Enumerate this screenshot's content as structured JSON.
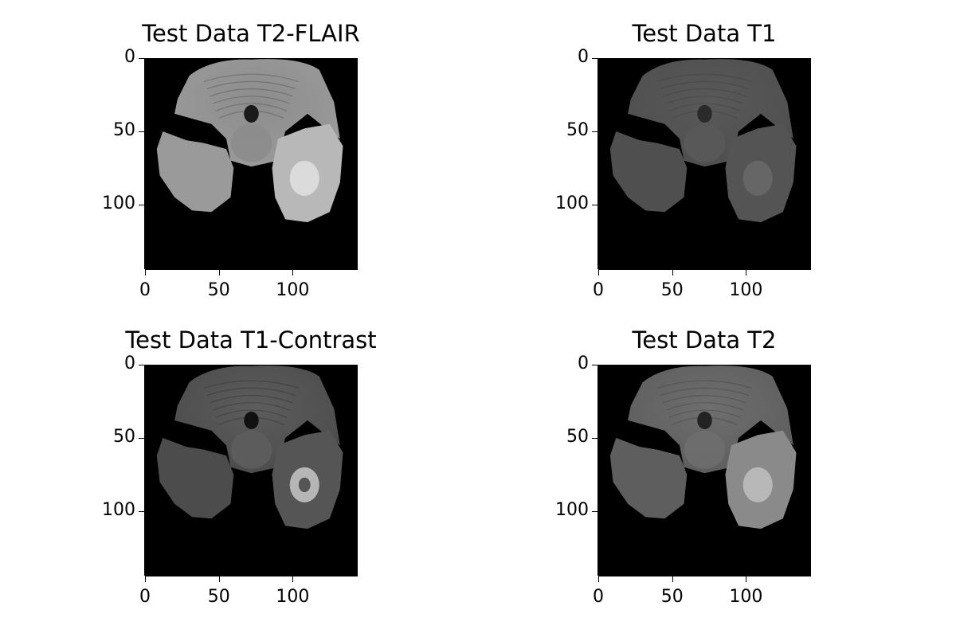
{
  "figure": {
    "panels": [
      {
        "title": "Test Data T2-FLAIR",
        "x_ticks": [
          "0",
          "50",
          "100"
        ],
        "y_ticks": [
          "0",
          "50",
          "100"
        ],
        "modality": "t2-flair"
      },
      {
        "title": "Test Data T1",
        "x_ticks": [
          "0",
          "50",
          "100"
        ],
        "y_ticks": [
          "0",
          "50",
          "100"
        ],
        "modality": "t1"
      },
      {
        "title": "Test Data T1-Contrast",
        "x_ticks": [
          "0",
          "50",
          "100"
        ],
        "y_ticks": [
          "0",
          "50",
          "100"
        ],
        "modality": "t1-contrast"
      },
      {
        "title": "Test Data T2",
        "x_ticks": [
          "0",
          "50",
          "100"
        ],
        "y_ticks": [
          "0",
          "50",
          "100"
        ],
        "modality": "t2"
      }
    ],
    "axis_range": [
      0,
      144
    ],
    "colormap": "gray"
  }
}
